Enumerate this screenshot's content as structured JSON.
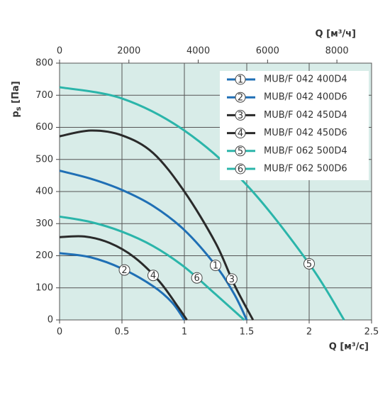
{
  "chart_data": {
    "type": "line",
    "xlabel": "Q [м³/с]",
    "x2label": "Q [м³/ч]",
    "ylabel": {
      "main": "p",
      "sub": "s",
      "unit": "[Па]"
    },
    "xlim": [
      0,
      2.5
    ],
    "xticks": [
      0,
      0.5,
      1,
      1.5,
      2,
      2.5
    ],
    "x2lim": [
      0,
      9000
    ],
    "x2ticks": [
      0,
      2000,
      4000,
      6000,
      8000
    ],
    "ylim": [
      0,
      800
    ],
    "yticks": [
      0,
      100,
      200,
      300,
      400,
      500,
      600,
      700,
      800
    ],
    "grid": true,
    "legend": "top-right",
    "series": [
      {
        "id": "1",
        "name": "MUB/F 042 400D4",
        "color": "#1f6fb5",
        "x": [
          0,
          0.25,
          0.5,
          0.75,
          1.0,
          1.25,
          1.4,
          1.5
        ],
        "values": [
          465,
          440,
          405,
          355,
          280,
          170,
          80,
          0
        ]
      },
      {
        "id": "2",
        "name": "MUB/F 042 400D6",
        "color": "#1f6fb5",
        "x": [
          0,
          0.25,
          0.5,
          0.75,
          0.9,
          1.0
        ],
        "values": [
          208,
          195,
          160,
          105,
          55,
          0
        ]
      },
      {
        "id": "3",
        "name": "MUB/F 042 450D4",
        "color": "#2a2a2a",
        "x": [
          0,
          0.25,
          0.5,
          0.75,
          1.0,
          1.25,
          1.4,
          1.55
        ],
        "values": [
          572,
          590,
          575,
          520,
          400,
          240,
          110,
          0
        ]
      },
      {
        "id": "4",
        "name": "MUB/F 042 450D6",
        "color": "#2a2a2a",
        "x": [
          0,
          0.2,
          0.4,
          0.6,
          0.8,
          0.95,
          1.02
        ],
        "values": [
          258,
          260,
          240,
          195,
          120,
          40,
          0
        ]
      },
      {
        "id": "5",
        "name": "MUB/F 062 500D4",
        "color": "#2bb5aa",
        "x": [
          0,
          0.5,
          1.0,
          1.5,
          2.0,
          2.28
        ],
        "values": [
          725,
          690,
          590,
          420,
          175,
          0
        ]
      },
      {
        "id": "6",
        "name": "MUB/F 062 500D6",
        "color": "#2bb5aa",
        "x": [
          0,
          0.25,
          0.5,
          0.75,
          1.0,
          1.25,
          1.48
        ],
        "values": [
          322,
          305,
          275,
          230,
          165,
          80,
          0
        ]
      }
    ]
  }
}
